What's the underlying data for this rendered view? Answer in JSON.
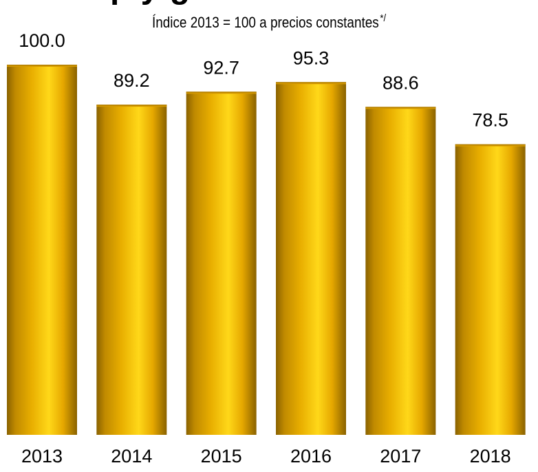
{
  "chart_data": {
    "type": "bar",
    "title": "",
    "subtitle": "Índice 2013 = 100 a precios constantes",
    "subtitle_note": "*/",
    "categories": [
      "2013",
      "2014",
      "2015",
      "2016",
      "2017",
      "2018"
    ],
    "values": [
      100.0,
      89.2,
      92.7,
      95.3,
      88.6,
      78.5
    ],
    "value_labels": [
      "100.0",
      "89.2",
      "92.7",
      "95.3",
      "88.6",
      "78.5"
    ],
    "xlabel": "",
    "ylabel": "",
    "ylim": [
      0,
      100
    ],
    "grid": false,
    "legend": "none",
    "colors": {
      "bar_edge": "#8a6200",
      "bar_mid": "#e8ae00",
      "bar_highlight": "#ffd819",
      "bar_top": "#c08a00"
    }
  }
}
